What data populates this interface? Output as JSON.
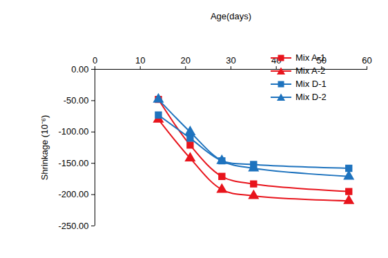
{
  "chart_data": {
    "type": "line",
    "x_label": "Age(days)",
    "y_label": "Shrinkage (10⁻⁶)",
    "x": [
      14,
      21,
      28,
      35,
      56
    ],
    "series": [
      {
        "name": "Mix A-1",
        "color": "#e8141c",
        "marker": "square",
        "line_style": "solid",
        "values": [
          -48,
          -121,
          -171,
          -183,
          -195
        ]
      },
      {
        "name": "Mix A-2",
        "color": "#e8141c",
        "marker": "triangle",
        "line_style": "solid",
        "values": [
          -80,
          -142,
          -192,
          -202,
          -210
        ]
      },
      {
        "name": "Mix D-1",
        "color": "#1e73be",
        "marker": "square",
        "line_style": "solid",
        "values": [
          -73,
          -110,
          -146,
          -152,
          -158
        ]
      },
      {
        "name": "Mix D-2",
        "color": "#1e73be",
        "marker": "triangle",
        "line_style": "solid",
        "values": [
          -48,
          -100,
          -146,
          -158,
          -171
        ]
      }
    ],
    "xlim": [
      0,
      60
    ],
    "xticks": [
      0,
      10,
      20,
      30,
      40,
      50,
      60
    ],
    "ylim": [
      -250,
      0
    ],
    "yticks": [
      {
        "value": 0,
        "label": "0.00"
      },
      {
        "value": -50,
        "label": "-50.00"
      },
      {
        "value": -100,
        "label": "-100.00"
      },
      {
        "value": -150,
        "label": "-150.00"
      },
      {
        "value": -200,
        "label": "-200.00"
      },
      {
        "value": -250,
        "label": "-250.00"
      }
    ],
    "grid": false,
    "legend": "top-right"
  }
}
